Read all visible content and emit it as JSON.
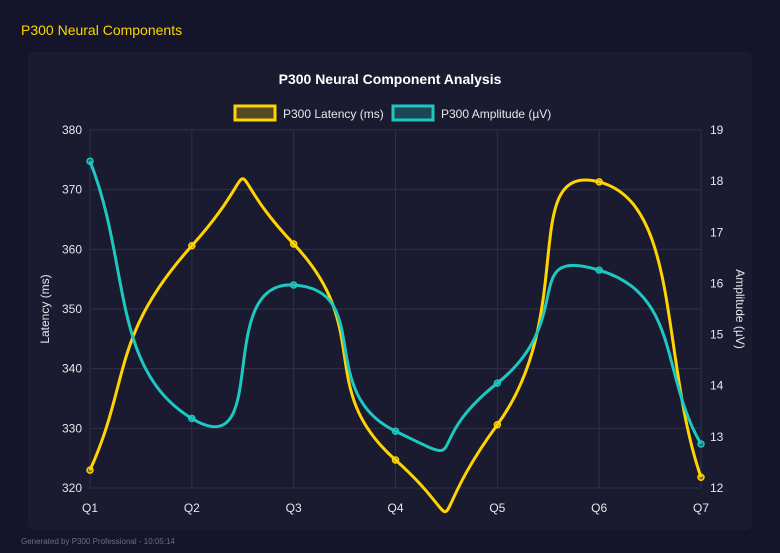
{
  "page_title": "P300 Neural Components",
  "footer": "Generated by P300 Professional - 10:05:14",
  "chart_data": {
    "type": "line",
    "title": "P300 Neural Component Analysis",
    "categories": [
      "Q1",
      "Q2",
      "Q3",
      "Q4",
      "Q5",
      "Q6",
      "Q7"
    ],
    "series": [
      {
        "name": "P300 Latency (ms)",
        "axis": "left",
        "color": "#ffd400",
        "values": [
          323.0,
          360.6,
          360.9,
          324.7,
          330.6,
          371.3,
          321.8
        ]
      },
      {
        "name": "P300 Amplitude (µV)",
        "axis": "right",
        "color": "#1ec8c0",
        "values": [
          18.39,
          13.36,
          15.97,
          13.11,
          14.05,
          16.26,
          12.86
        ]
      }
    ],
    "ylabel": "Latency (ms)",
    "y2label": "Amplitude (µV)",
    "ylim": [
      320,
      380
    ],
    "yticks": [
      "380",
      "370",
      "360",
      "350",
      "340",
      "330",
      "320"
    ],
    "y2lim": [
      12,
      19
    ],
    "y2ticks": [
      "19",
      "18",
      "17",
      "16",
      "15",
      "14",
      "13",
      "12"
    ],
    "grid": true,
    "legend": "top",
    "smooth": true
  }
}
